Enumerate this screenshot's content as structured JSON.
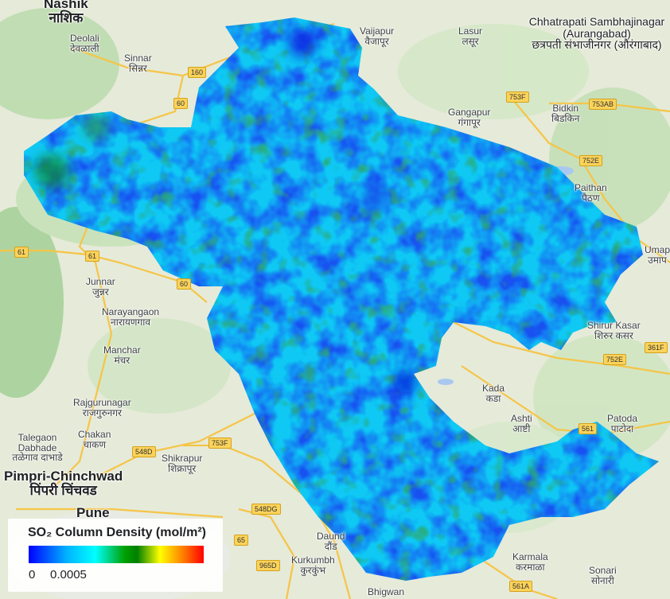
{
  "legend": {
    "title": "SO₂ Column Density (mol/m²)",
    "min": "0",
    "max": "0.0005",
    "colors": [
      "#0000ff",
      "#00b4ff",
      "#00ffff",
      "#008000",
      "#ffff00",
      "#ff8000",
      "#ff0000"
    ]
  },
  "places": [
    {
      "id": "nashik",
      "en": "Nashik",
      "mr": "नाशिक",
      "cls": "big"
    },
    {
      "id": "deolali",
      "en": "Deolali",
      "mr": "देवळाली",
      "cls": "small"
    },
    {
      "id": "sinnar",
      "en": "Sinnar",
      "mr": "सिन्नर",
      "cls": "small"
    },
    {
      "id": "vaijapur",
      "en": "Vaijapur",
      "mr": "वैजापूर",
      "cls": "small"
    },
    {
      "id": "lasur",
      "en": "Lasur",
      "mr": "लसूर",
      "cls": "small"
    },
    {
      "id": "aurangabad",
      "en": "Chhatrapati Sambhajinagar (Aurangabad)",
      "mr": "छत्रपती संभाजीनगर (औरंगाबाद)",
      "cls": "city"
    },
    {
      "id": "gangapur",
      "en": "Gangapur",
      "mr": "गंगापूर",
      "cls": "small"
    },
    {
      "id": "bidkin",
      "en": "Bidkin",
      "mr": "बिडकिन",
      "cls": "small"
    },
    {
      "id": "paithan",
      "en": "Paithan",
      "mr": "पैठण",
      "cls": "small"
    },
    {
      "id": "junnar",
      "en": "Junnar",
      "mr": "जुन्नर",
      "cls": "small"
    },
    {
      "id": "narayangaon",
      "en": "Narayangaon",
      "mr": "नारायणगाव",
      "cls": "small"
    },
    {
      "id": "manchar",
      "en": "Manchar",
      "mr": "मंचर",
      "cls": "small"
    },
    {
      "id": "rajgurunagar",
      "en": "Rajgurunagar",
      "mr": "राजगुरुनगर",
      "cls": "small"
    },
    {
      "id": "chakan",
      "en": "Chakan",
      "mr": "चाकण",
      "cls": "small"
    },
    {
      "id": "talegaon",
      "en": "Talegaon Dabhade",
      "mr": "तळेगाव दाभाडे",
      "cls": "small"
    },
    {
      "id": "shikrapur",
      "en": "Shikrapur",
      "mr": "शिक्रापूर",
      "cls": "small"
    },
    {
      "id": "pimpri",
      "en": "Pimpri-Chinchwad",
      "mr": "पिंपरी चिंचवड",
      "cls": "big"
    },
    {
      "id": "pune",
      "en": "Pune",
      "mr": "",
      "cls": "big"
    },
    {
      "id": "kada",
      "en": "Kada",
      "mr": "कडा",
      "cls": "small"
    },
    {
      "id": "ashti",
      "en": "Ashti",
      "mr": "आष्टी",
      "cls": "small"
    },
    {
      "id": "patoda",
      "en": "Patoda",
      "mr": "पाटोदा",
      "cls": "small"
    },
    {
      "id": "kasar",
      "en": "Shirur Kasar",
      "mr": "शिरुर कसर",
      "cls": "small"
    },
    {
      "id": "umap",
      "en": "Umap",
      "mr": "उमाप",
      "cls": "small"
    },
    {
      "id": "daund",
      "en": "Daund",
      "mr": "दौंड",
      "cls": "small"
    },
    {
      "id": "kurkumbh",
      "en": "Kurkumbh",
      "mr": "कुरकुंभ",
      "cls": "small"
    },
    {
      "id": "karmala",
      "en": "Karmala",
      "mr": "करमाळा",
      "cls": "small"
    },
    {
      "id": "sonari",
      "en": "Sonari",
      "mr": "सोनारी",
      "cls": "small"
    },
    {
      "id": "bhigwan",
      "en": "Bhigwan",
      "mr": "",
      "cls": "small"
    }
  ],
  "shields": [
    "160",
    "60",
    "61",
    "61",
    "60",
    "753F",
    "753AB",
    "752E",
    "361F",
    "752E",
    "561",
    "548D",
    "753F",
    "548DG",
    "65",
    "965D",
    "561A"
  ]
}
